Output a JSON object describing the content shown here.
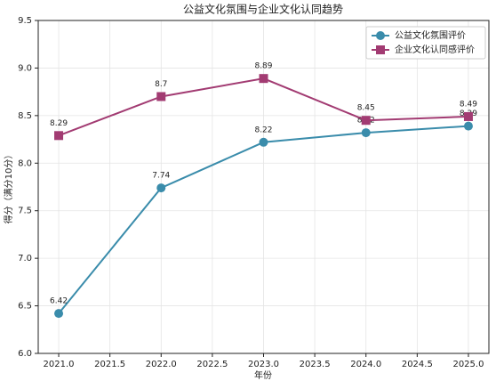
{
  "chart_data": {
    "type": "line",
    "title": "公益文化氛围与企业文化认同趋势",
    "xlabel": "年份",
    "ylabel": "得分（满分10分）",
    "x": [
      2021,
      2022,
      2023,
      2024,
      2025
    ],
    "series": [
      {
        "name": "公益文化氛围评价",
        "color": "#3a8cab",
        "marker": "circle",
        "values": [
          6.42,
          7.74,
          8.22,
          8.32,
          8.39
        ]
      },
      {
        "name": "企业文化认同感评价",
        "color": "#a23b72",
        "marker": "square",
        "values": [
          8.29,
          8.7,
          8.89,
          8.45,
          8.49
        ]
      }
    ],
    "xlim": [
      2020.8,
      2025.2
    ],
    "xticks": [
      {
        "value": 2021,
        "label": "2021.0"
      },
      2021.5,
      {
        "value": 2022,
        "label": "2022.0"
      },
      2022.5,
      {
        "value": 2023,
        "label": "2023.0"
      },
      2023.5,
      {
        "value": 2024,
        "label": "2024.0"
      },
      2024.5,
      {
        "value": 2025,
        "label": "2025.0"
      }
    ],
    "ylim": [
      6.0,
      9.5
    ],
    "yticks": [
      {
        "value": 6,
        "label": "6.0"
      },
      6.5,
      {
        "value": 7,
        "label": "7.0"
      },
      7.5,
      {
        "value": 8,
        "label": "8.0"
      },
      8.5,
      {
        "value": 9,
        "label": "9.0"
      },
      9.5
    ],
    "grid": true,
    "legend": "upper right"
  }
}
